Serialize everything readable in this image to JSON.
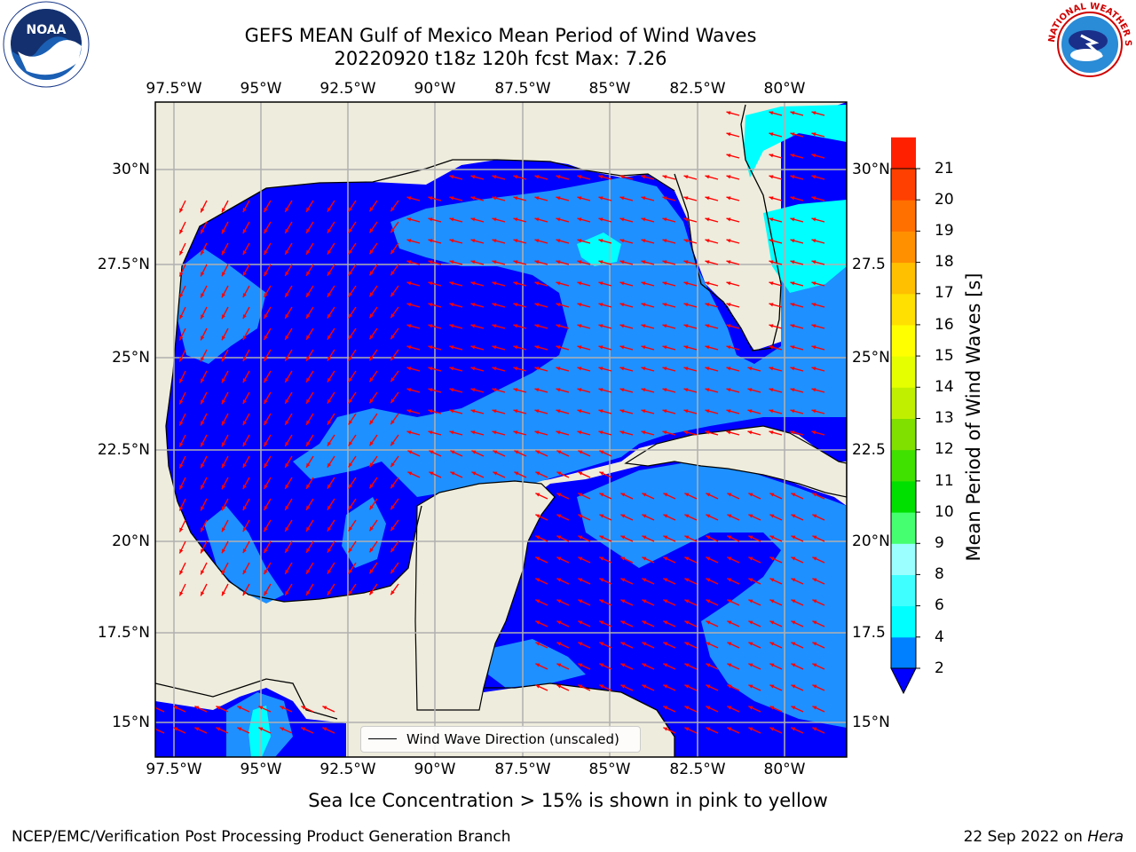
{
  "figure": {
    "title_line1": "GEFS MEAN Gulf of Mexico Mean Period of Wind Waves",
    "title_line2": "20220920 t18z 120h fcst   Max: 7.26",
    "subtitle": "Sea Ice Concentration > 15% is shown in pink to yellow",
    "footer_left": "NCEP/EMC/Verification Post Processing Product Generation Branch",
    "footer_right_prefix": "22 Sep 2022 on ",
    "footer_right_host": "Hera",
    "legend_label": "Wind Wave Direction (unscaled)"
  },
  "logos": {
    "left": {
      "name": "noaa-logo",
      "text": "NOAA"
    },
    "right": {
      "name": "nws-logo",
      "text": "NATIONAL WEATHER SERVICE"
    }
  },
  "map": {
    "region": "Gulf of Mexico",
    "lon_ticks": [
      "97.5°W",
      "95°W",
      "92.5°W",
      "90°W",
      "87.5°W",
      "85°W",
      "82.5°W",
      "80°W"
    ],
    "lat_ticks_left": [
      "30°N",
      "27.5°N",
      "25°N",
      "22.5°N",
      "20°N",
      "17.5°N",
      "15°N"
    ],
    "lat_ticks_right": [
      "30°N",
      "27.5",
      "25°N",
      "22.5",
      "20°N",
      "17.5",
      "15°N"
    ],
    "colors": {
      "land": "#eeecdc",
      "water_low": "#0000ff",
      "water_mid": "#1e90ff",
      "water_high": "#00ffff",
      "arrow": "#ff0000",
      "grid": "#b0b0b0"
    }
  },
  "colorbar": {
    "label": "Mean Period of Wind Waves [s]",
    "ticks": [
      "21",
      "20",
      "19",
      "18",
      "17",
      "16",
      "15",
      "14",
      "13",
      "12",
      "11",
      "10",
      "9",
      "8",
      "6",
      "4",
      "2"
    ],
    "colors": [
      "#0080ff",
      "#00ffff",
      "#40ffff",
      "#9cffff",
      "#46ff70",
      "#00e000",
      "#40e000",
      "#80e000",
      "#c0f000",
      "#e6ff00",
      "#ffff00",
      "#ffe000",
      "#ffc000",
      "#ff9000",
      "#ff7000",
      "#ff4000",
      "#ff2000",
      "#ff0000"
    ]
  }
}
